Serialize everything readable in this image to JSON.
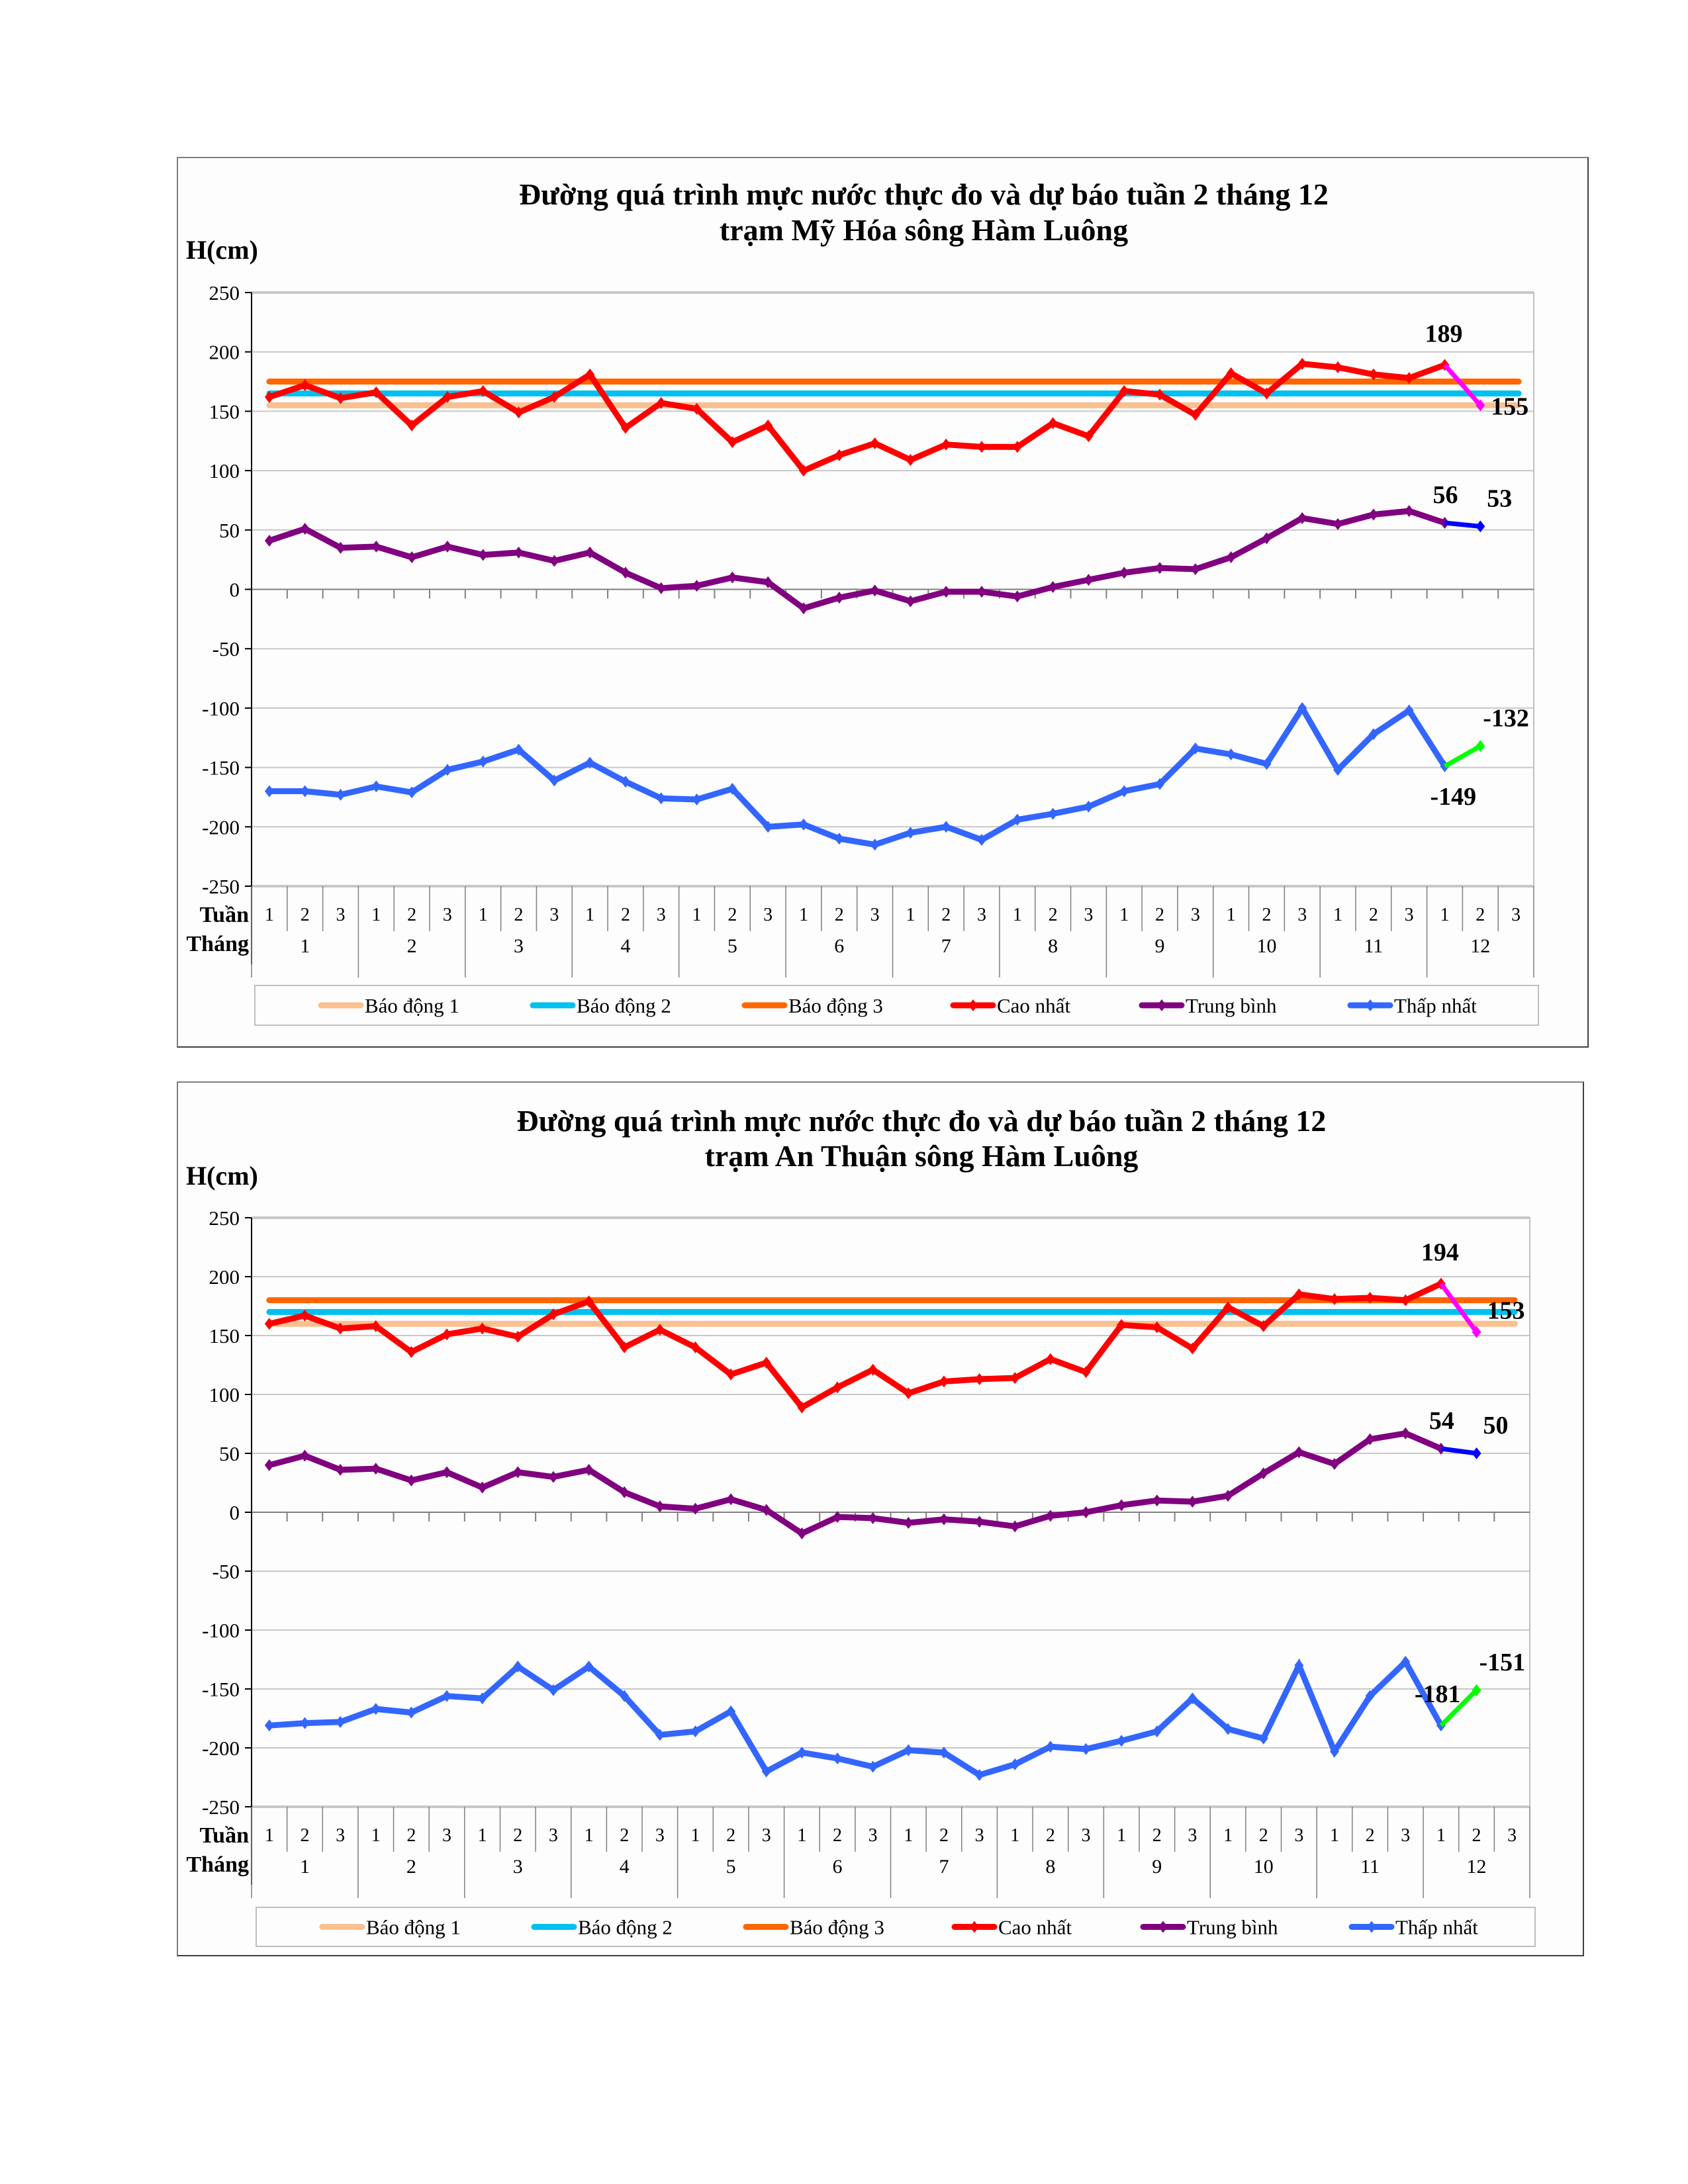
{
  "chart_data": [
    {
      "type": "line",
      "title": "Đường quá trình mực nước thực đo và dự báo tuần 2 tháng 12",
      "subtitle": "trạm Mỹ Hóa sông Hàm Luông",
      "ylabel": "H(cm)",
      "xlabel_rows": [
        "Tuần",
        "Tháng"
      ],
      "ylim": [
        -250,
        250
      ],
      "yticks": [
        "250",
        "200",
        "150",
        "100",
        "50",
        "0",
        "-50",
        "-100",
        "-150",
        "-200",
        "-250"
      ],
      "ytick_values": [
        250,
        200,
        150,
        100,
        50,
        0,
        -50,
        -100,
        -150,
        -200,
        -250
      ],
      "weeks": [
        "1",
        "2",
        "3"
      ],
      "months": [
        "1",
        "2",
        "3",
        "4",
        "5",
        "6",
        "7",
        "8",
        "9",
        "10",
        "11",
        "12"
      ],
      "grid": true,
      "legend_position": "bottom",
      "thresholds": [
        {
          "name": "Báo động 1",
          "value": 155,
          "color": "#fac090"
        },
        {
          "name": "Báo động 2",
          "value": 165,
          "color": "#00c0f0"
        },
        {
          "name": "Báo động 3",
          "value": 175,
          "color": "#ff6600"
        }
      ],
      "series": [
        {
          "name": "Cao nhất",
          "color": "#ff0000",
          "values": [
            162,
            172,
            161,
            166,
            138,
            162,
            167,
            149,
            162,
            181,
            136,
            157,
            152,
            124,
            138,
            100,
            113,
            123,
            109,
            122,
            120,
            120,
            140,
            129,
            167,
            164,
            147,
            182,
            165,
            190,
            187,
            181,
            178,
            189
          ],
          "forecast": {
            "value": 155,
            "color": "#ff00ff"
          },
          "labels": {
            "last": "189",
            "forecast": "155"
          }
        },
        {
          "name": "Trung bình",
          "color": "#800080",
          "values": [
            41,
            51,
            35,
            36,
            27,
            36,
            29,
            31,
            24,
            31,
            14,
            1,
            3,
            10,
            6,
            -16,
            -7,
            -1,
            -10,
            -2,
            -2,
            -6,
            2,
            8,
            14,
            18,
            17,
            27,
            43,
            60,
            55,
            63,
            66,
            56
          ],
          "forecast": {
            "value": 53,
            "color": "#0000ff"
          },
          "labels": {
            "last": "56",
            "forecast": "53"
          }
        },
        {
          "name": "Thấp nhất",
          "color": "#3366ff",
          "values": [
            -170,
            -170,
            -173,
            -166,
            -171,
            -152,
            -145,
            -135,
            -161,
            -146,
            -162,
            -176,
            -177,
            -168,
            -200,
            -198,
            -210,
            -215,
            -205,
            -200,
            -211,
            -194,
            -189,
            -183,
            -170,
            -164,
            -134,
            -139,
            -147,
            -100,
            -152,
            -122,
            -102,
            -149
          ],
          "forecast": {
            "value": -132,
            "color": "#00ff00"
          },
          "labels": {
            "last": "-149",
            "forecast": "-132"
          }
        }
      ]
    },
    {
      "type": "line",
      "title": "Đường quá trình mực nước thực đo và dự báo tuần 2 tháng 12",
      "subtitle": "trạm An Thuận sông Hàm Luông",
      "ylabel": "H(cm)",
      "xlabel_rows": [
        "Tuần",
        "Tháng"
      ],
      "ylim": [
        -250,
        250
      ],
      "yticks": [
        "250",
        "200",
        "150",
        "100",
        "50",
        "0",
        "-50",
        "-100",
        "-150",
        "-200",
        "-250"
      ],
      "ytick_values": [
        250,
        200,
        150,
        100,
        50,
        0,
        -50,
        -100,
        -150,
        -200,
        -250
      ],
      "weeks": [
        "1",
        "2",
        "3"
      ],
      "months": [
        "1",
        "2",
        "3",
        "4",
        "5",
        "6",
        "7",
        "8",
        "9",
        "10",
        "11",
        "12"
      ],
      "grid": true,
      "legend_position": "bottom",
      "thresholds": [
        {
          "name": "Báo động 1",
          "value": 160,
          "color": "#fac090"
        },
        {
          "name": "Báo động 2",
          "value": 170,
          "color": "#00c0f0"
        },
        {
          "name": "Báo động 3",
          "value": 180,
          "color": "#ff6600"
        }
      ],
      "series": [
        {
          "name": "Cao nhất",
          "color": "#ff0000",
          "values": [
            160,
            167,
            156,
            158,
            136,
            151,
            156,
            149,
            168,
            179,
            140,
            155,
            140,
            117,
            127,
            89,
            106,
            121,
            101,
            111,
            113,
            114,
            130,
            119,
            159,
            157,
            139,
            174,
            158,
            185,
            181,
            182,
            180,
            194
          ],
          "forecast": {
            "value": 153,
            "color": "#ff00ff"
          },
          "labels": {
            "last": "194",
            "forecast": "153"
          }
        },
        {
          "name": "Trung bình",
          "color": "#800080",
          "values": [
            40,
            48,
            36,
            37,
            27,
            34,
            21,
            34,
            30,
            36,
            17,
            5,
            3,
            11,
            2,
            -18,
            -4,
            -5,
            -9,
            -6,
            -8,
            -12,
            -3,
            0,
            6,
            10,
            9,
            14,
            33,
            51,
            41,
            62,
            67,
            54
          ],
          "forecast": {
            "value": 50,
            "color": "#0000ff"
          },
          "labels": {
            "last": "54",
            "forecast": "50"
          }
        },
        {
          "name": "Thấp nhất",
          "color": "#3366ff",
          "values": [
            -181,
            -179,
            -178,
            -167,
            -170,
            -156,
            -158,
            -131,
            -151,
            -131,
            -156,
            -189,
            -186,
            -169,
            -220,
            -204,
            -209,
            -216,
            -202,
            -204,
            -223,
            -214,
            -199,
            -201,
            -194,
            -186,
            -158,
            -184,
            -192,
            -130,
            -203,
            -156,
            -127,
            -181
          ],
          "forecast": {
            "value": -151,
            "color": "#00ff00"
          },
          "labels": {
            "last": "-181",
            "forecast": "-151"
          }
        }
      ]
    }
  ],
  "legend_items": [
    "Báo động 1",
    "Báo động 2",
    "Báo động 3",
    "Cao nhất",
    "Trung bình",
    "Thấp nhất"
  ]
}
